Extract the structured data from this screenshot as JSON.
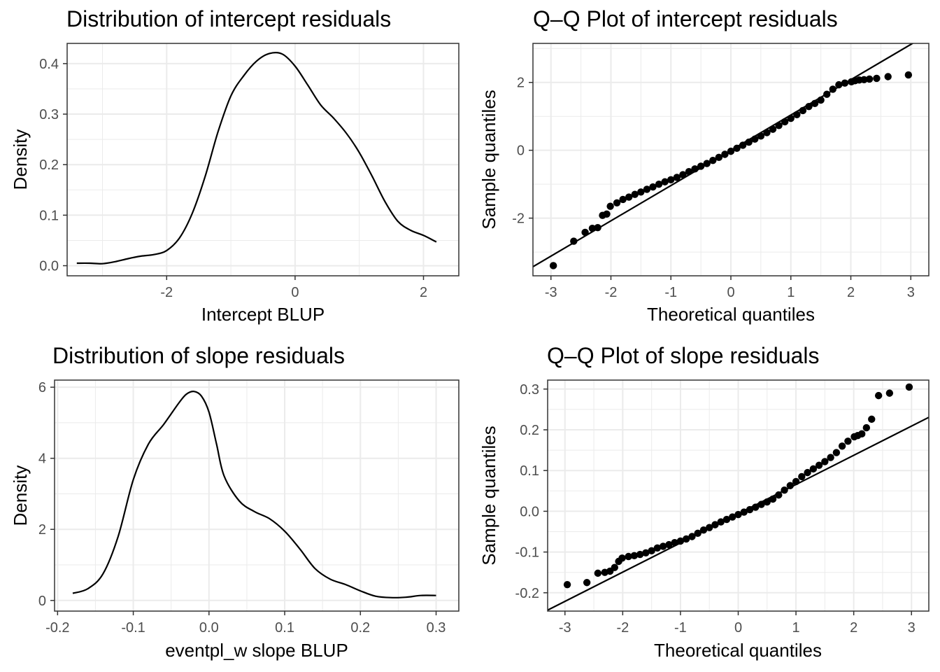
{
  "chart_data": [
    {
      "type": "line",
      "title": "Distribution of intercept residuals",
      "xlabel": "Intercept BLUP",
      "ylabel": "Density",
      "xlim": [
        -3.55,
        2.55
      ],
      "ylim": [
        -0.02,
        0.44
      ],
      "xticks": [
        -2,
        0,
        2
      ],
      "xtick_labels": [
        "-2",
        "0",
        "2"
      ],
      "yticks": [
        0.0,
        0.1,
        0.2,
        0.3,
        0.4
      ],
      "ytick_labels": [
        "0.0",
        "0.1",
        "0.2",
        "0.3",
        "0.4"
      ],
      "grid": true,
      "series": [
        {
          "x": [
            -3.4,
            -3.2,
            -3.0,
            -2.8,
            -2.6,
            -2.4,
            -2.2,
            -2.0,
            -1.8,
            -1.6,
            -1.4,
            -1.2,
            -1.0,
            -0.8,
            -0.6,
            -0.4,
            -0.2,
            0.0,
            0.2,
            0.4,
            0.6,
            0.8,
            1.0,
            1.2,
            1.4,
            1.6,
            1.8,
            2.0,
            2.2
          ],
          "y": [
            0.005,
            0.005,
            0.004,
            0.008,
            0.014,
            0.019,
            0.022,
            0.03,
            0.055,
            0.104,
            0.177,
            0.265,
            0.336,
            0.376,
            0.405,
            0.42,
            0.419,
            0.395,
            0.357,
            0.318,
            0.292,
            0.262,
            0.224,
            0.177,
            0.127,
            0.088,
            0.07,
            0.06,
            0.047
          ]
        }
      ]
    },
    {
      "type": "scatter",
      "title": "Q–Q Plot of intercept residuals",
      "xlabel": "Theoretical quantiles",
      "ylabel": "Sample quantiles",
      "xlim": [
        -3.3,
        3.3
      ],
      "ylim": [
        -3.7,
        3.15
      ],
      "xticks": [
        -3,
        -2,
        -1,
        0,
        1,
        2,
        3
      ],
      "xtick_labels": [
        "-3",
        "-2",
        "-1",
        "0",
        "1",
        "2",
        "3"
      ],
      "yticks": [
        -2,
        0,
        2
      ],
      "ytick_labels": [
        "-2",
        "0",
        "2"
      ],
      "grid": true,
      "reference_line": {
        "intercept": 0.0,
        "slope": 1.04
      },
      "series": [
        {
          "x": [
            -2.96,
            -2.62,
            -2.43,
            -2.31,
            -2.22,
            -2.14,
            -2.07,
            -2.01,
            -1.9,
            -1.8,
            -1.7,
            -1.6,
            -1.5,
            -1.4,
            -1.3,
            -1.2,
            -1.1,
            -1.0,
            -0.9,
            -0.8,
            -0.7,
            -0.6,
            -0.5,
            -0.4,
            -0.3,
            -0.2,
            -0.1,
            0.0,
            0.1,
            0.2,
            0.3,
            0.4,
            0.5,
            0.6,
            0.7,
            0.8,
            0.9,
            1.0,
            1.1,
            1.2,
            1.3,
            1.4,
            1.5,
            1.6,
            1.7,
            1.8,
            1.9,
            2.01,
            2.07,
            2.14,
            2.22,
            2.31,
            2.43,
            2.62,
            2.96
          ],
          "y": [
            -3.4,
            -2.68,
            -2.42,
            -2.3,
            -2.28,
            -1.92,
            -1.88,
            -1.65,
            -1.55,
            -1.45,
            -1.38,
            -1.3,
            -1.23,
            -1.15,
            -1.08,
            -1.0,
            -0.93,
            -0.87,
            -0.8,
            -0.72,
            -0.63,
            -0.55,
            -0.47,
            -0.39,
            -0.3,
            -0.21,
            -0.12,
            -0.03,
            0.06,
            0.15,
            0.24,
            0.33,
            0.42,
            0.52,
            0.62,
            0.73,
            0.84,
            0.94,
            1.05,
            1.17,
            1.29,
            1.38,
            1.48,
            1.65,
            1.8,
            1.93,
            1.98,
            2.02,
            2.05,
            2.07,
            2.08,
            2.1,
            2.12,
            2.17,
            2.22
          ]
        }
      ]
    },
    {
      "type": "line",
      "title": "Distribution of slope residuals",
      "xlabel": "eventpl_w slope BLUP",
      "ylabel": "Density",
      "xlim": [
        -0.204,
        0.33
      ],
      "ylim": [
        -0.3,
        6.2
      ],
      "xticks": [
        -0.2,
        -0.1,
        0.0,
        0.1,
        0.2,
        0.3
      ],
      "xtick_labels": [
        "-0.2",
        "-0.1",
        "0.0",
        "0.1",
        "0.2",
        "0.3"
      ],
      "yticks": [
        0,
        2,
        4,
        6
      ],
      "ytick_labels": [
        "0",
        "2",
        "4",
        "6"
      ],
      "grid": true,
      "series": [
        {
          "x": [
            -0.18,
            -0.16,
            -0.14,
            -0.12,
            -0.1,
            -0.08,
            -0.06,
            -0.04,
            -0.03,
            -0.02,
            -0.01,
            0.0,
            0.01,
            0.02,
            0.04,
            0.06,
            0.08,
            0.1,
            0.12,
            0.14,
            0.16,
            0.18,
            0.2,
            0.22,
            0.24,
            0.26,
            0.28,
            0.3
          ],
          "y": [
            0.2,
            0.33,
            0.75,
            1.8,
            3.4,
            4.4,
            4.95,
            5.55,
            5.8,
            5.88,
            5.75,
            5.3,
            4.4,
            3.5,
            2.8,
            2.5,
            2.3,
            1.95,
            1.45,
            0.9,
            0.6,
            0.45,
            0.27,
            0.12,
            0.08,
            0.09,
            0.14,
            0.14
          ]
        }
      ]
    },
    {
      "type": "scatter",
      "title": "Q–Q Plot of slope residuals",
      "xlabel": "Theoretical quantiles",
      "ylabel": "Sample quantiles",
      "xlim": [
        -3.3,
        3.3
      ],
      "ylim": [
        -0.245,
        0.322
      ],
      "xticks": [
        -3,
        -2,
        -1,
        0,
        1,
        2,
        3
      ],
      "xtick_labels": [
        "-3",
        "-2",
        "-1",
        "0",
        "1",
        "2",
        "3"
      ],
      "yticks": [
        -0.2,
        -0.1,
        0.0,
        0.1,
        0.2,
        0.3
      ],
      "ytick_labels": [
        "-0.2",
        "-0.1",
        "0.0",
        "0.1",
        "0.2",
        "0.3"
      ],
      "grid": true,
      "reference_line": {
        "intercept": -0.006,
        "slope": 0.0717
      },
      "series": [
        {
          "x": [
            -2.96,
            -2.62,
            -2.43,
            -2.31,
            -2.22,
            -2.14,
            -2.07,
            -2.01,
            -1.9,
            -1.8,
            -1.7,
            -1.6,
            -1.5,
            -1.4,
            -1.3,
            -1.2,
            -1.1,
            -1.0,
            -0.9,
            -0.8,
            -0.7,
            -0.6,
            -0.5,
            -0.4,
            -0.3,
            -0.2,
            -0.1,
            0.0,
            0.1,
            0.2,
            0.3,
            0.4,
            0.5,
            0.6,
            0.7,
            0.8,
            0.9,
            1.0,
            1.1,
            1.2,
            1.3,
            1.4,
            1.5,
            1.6,
            1.7,
            1.8,
            1.9,
            2.01,
            2.07,
            2.14,
            2.22,
            2.31,
            2.43,
            2.62,
            2.96
          ],
          "y": [
            -0.18,
            -0.175,
            -0.152,
            -0.15,
            -0.147,
            -0.138,
            -0.123,
            -0.115,
            -0.111,
            -0.109,
            -0.106,
            -0.102,
            -0.097,
            -0.09,
            -0.086,
            -0.082,
            -0.077,
            -0.073,
            -0.068,
            -0.062,
            -0.054,
            -0.046,
            -0.04,
            -0.033,
            -0.026,
            -0.02,
            -0.014,
            -0.008,
            -0.002,
            0.004,
            0.01,
            0.017,
            0.023,
            0.03,
            0.04,
            0.052,
            0.063,
            0.073,
            0.085,
            0.095,
            0.104,
            0.113,
            0.122,
            0.132,
            0.144,
            0.16,
            0.172,
            0.183,
            0.186,
            0.19,
            0.205,
            0.226,
            0.284,
            0.29,
            0.305
          ]
        }
      ]
    }
  ]
}
